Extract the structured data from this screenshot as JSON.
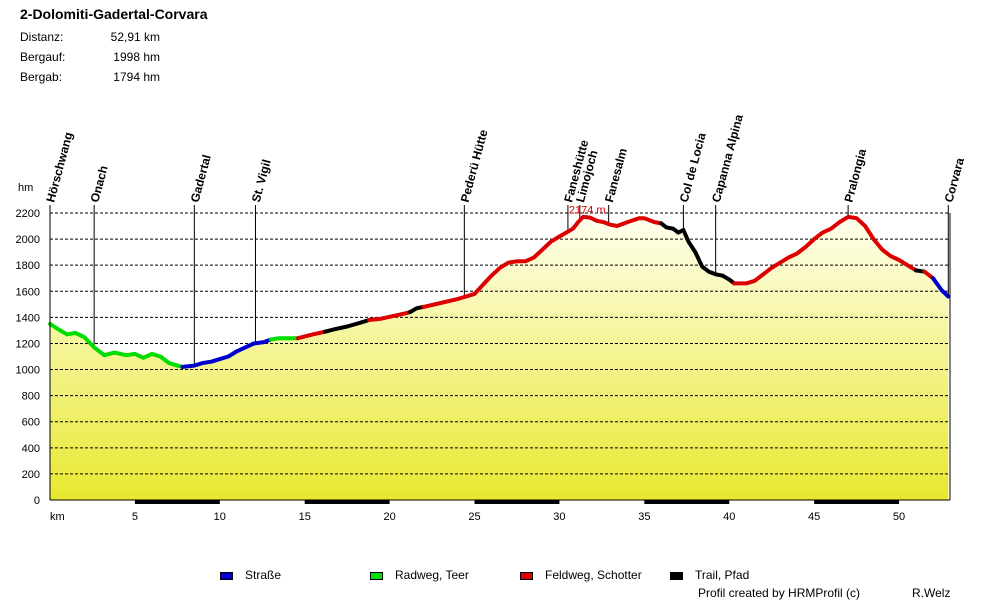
{
  "title": "2-Dolomiti-Gadertal-Corvara",
  "stats": [
    {
      "label": "Distanz:",
      "value": "52,91 km"
    },
    {
      "label": "Bergauf:",
      "value": "1998 hm"
    },
    {
      "label": "Bergab:",
      "value": "1794 hm"
    }
  ],
  "colors": {
    "strasse": "#0000cc",
    "radweg": "#00dd00",
    "feldweg": "#dd0000",
    "trail": "#000000",
    "fill_top": "#ffffee",
    "fill_bottom": "#e8e830",
    "max_label": "#dd0000"
  },
  "legend": [
    {
      "key": "strasse",
      "label": "Straße"
    },
    {
      "key": "radweg",
      "label": "Radweg, Teer"
    },
    {
      "key": "feldweg",
      "label": "Feldweg, Schotter"
    },
    {
      "key": "trail",
      "label": "Trail, Pfad"
    }
  ],
  "footer": {
    "credit": "Profil created by HRMProfil (c)",
    "author": "R.Welz"
  },
  "chart_data": {
    "type": "area",
    "title": "2-Dolomiti-Gadertal-Corvara",
    "xlabel": "km",
    "ylabel": "hm",
    "xlim": [
      0,
      53
    ],
    "ylim": [
      0,
      2200
    ],
    "x_ticks": [
      5,
      10,
      15,
      20,
      25,
      30,
      35,
      40,
      45,
      50
    ],
    "y_ticks": [
      0,
      200,
      400,
      600,
      800,
      1000,
      1200,
      1400,
      1600,
      1800,
      2000,
      2200
    ],
    "grid": true,
    "max": {
      "x": 31.4,
      "y": 2174,
      "label": "2174 m"
    },
    "waypoints": [
      {
        "name": "Hörschwang",
        "km": 0
      },
      {
        "name": "Onach",
        "km": 2.6
      },
      {
        "name": "Gadertal",
        "km": 8.5
      },
      {
        "name": "St. Vigil",
        "km": 12.1
      },
      {
        "name": "Pederü Hütte",
        "km": 24.4
      },
      {
        "name": "Faneshütte",
        "km": 30.5
      },
      {
        "name": "Limojoch",
        "km": 31.2
      },
      {
        "name": "Fanesalm",
        "km": 32.9
      },
      {
        "name": "Col de Locia",
        "km": 37.3
      },
      {
        "name": "Capanna Alpina",
        "km": 39.2
      },
      {
        "name": "Pralongia",
        "km": 47.0
      },
      {
        "name": "Corvara",
        "km": 52.9
      }
    ],
    "series": [
      {
        "name": "Radweg, Teer",
        "surface": "radweg",
        "x": [
          0,
          0.6,
          1.0,
          1.5,
          2.0,
          2.6,
          3.2,
          3.8,
          4.5,
          5.0,
          5.5,
          6.0,
          6.5,
          7.0,
          7.5,
          7.8
        ],
        "y": [
          1350,
          1300,
          1270,
          1280,
          1250,
          1170,
          1110,
          1130,
          1110,
          1120,
          1090,
          1120,
          1100,
          1050,
          1030,
          1020
        ]
      },
      {
        "name": "Straße",
        "surface": "strasse",
        "x": [
          7.8,
          8.5,
          9.0,
          9.5,
          10.0,
          10.5,
          11.0,
          11.5,
          12.0,
          12.6,
          13.0
        ],
        "y": [
          1020,
          1030,
          1050,
          1060,
          1080,
          1100,
          1140,
          1170,
          1200,
          1210,
          1230
        ]
      },
      {
        "name": "Radweg, Teer",
        "surface": "radweg",
        "x": [
          13.0,
          13.5,
          14.0,
          14.6
        ],
        "y": [
          1230,
          1240,
          1240,
          1240
        ]
      },
      {
        "name": "Feldweg, Schotter",
        "surface": "feldweg",
        "x": [
          14.6,
          15.5,
          16.2
        ],
        "y": [
          1240,
          1270,
          1290
        ]
      },
      {
        "name": "Trail, Pfad",
        "surface": "trail",
        "x": [
          16.2,
          16.8,
          17.5,
          18.3,
          18.8
        ],
        "y": [
          1290,
          1310,
          1330,
          1360,
          1380
        ]
      },
      {
        "name": "Feldweg, Schotter",
        "surface": "feldweg",
        "x": [
          18.8,
          19.5,
          20.2,
          20.9,
          21.2
        ],
        "y": [
          1380,
          1390,
          1410,
          1430,
          1440
        ]
      },
      {
        "name": "Trail, Pfad",
        "surface": "trail",
        "x": [
          21.2,
          21.6,
          22.0
        ],
        "y": [
          1440,
          1470,
          1480
        ]
      },
      {
        "name": "Feldweg, Schotter",
        "surface": "feldweg",
        "x": [
          22.0,
          23.0,
          24.0,
          24.5,
          25.0,
          25.5,
          26.0,
          26.5,
          27.0,
          27.5,
          28.0,
          28.5,
          29.0,
          29.5,
          30.0,
          30.4,
          30.8,
          31.1,
          31.4,
          31.8,
          32.2,
          32.6,
          33.0,
          33.4,
          34.0,
          34.7,
          35.0,
          35.6,
          36.0
        ],
        "y": [
          1480,
          1510,
          1540,
          1560,
          1580,
          1650,
          1720,
          1780,
          1820,
          1830,
          1830,
          1860,
          1920,
          1980,
          2020,
          2050,
          2080,
          2130,
          2170,
          2165,
          2140,
          2130,
          2110,
          2100,
          2130,
          2160,
          2160,
          2130,
          2120
        ]
      },
      {
        "name": "Trail, Pfad",
        "surface": "trail",
        "x": [
          36.0,
          36.3,
          36.7,
          37.0,
          37.3,
          37.6,
          38.0,
          38.4,
          38.8,
          39.2,
          39.6,
          40.0,
          40.3
        ],
        "y": [
          2120,
          2090,
          2080,
          2050,
          2070,
          1980,
          1900,
          1790,
          1750,
          1730,
          1720,
          1690,
          1660
        ]
      },
      {
        "name": "Feldweg, Schotter",
        "surface": "feldweg",
        "x": [
          40.3,
          41.0,
          41.5,
          42.0,
          42.5,
          43.0,
          43.5,
          44.0,
          44.5,
          45.0,
          45.5,
          46.0,
          46.5,
          47.0,
          47.5,
          48.0,
          48.5,
          49.0,
          49.5,
          50.0,
          50.5,
          51.0
        ],
        "y": [
          1660,
          1660,
          1680,
          1730,
          1780,
          1820,
          1860,
          1890,
          1940,
          2000,
          2050,
          2080,
          2130,
          2170,
          2160,
          2100,
          2000,
          1920,
          1870,
          1840,
          1800,
          1760
        ]
      },
      {
        "name": "Trail, Pfad",
        "surface": "trail",
        "x": [
          51.0,
          51.5
        ],
        "y": [
          1760,
          1750
        ]
      },
      {
        "name": "Feldweg, Schotter",
        "surface": "feldweg",
        "x": [
          51.5,
          52.0
        ],
        "y": [
          1750,
          1700
        ]
      },
      {
        "name": "Straße",
        "surface": "strasse",
        "x": [
          52.0,
          52.5,
          52.9
        ],
        "y": [
          1700,
          1610,
          1560
        ]
      }
    ]
  }
}
